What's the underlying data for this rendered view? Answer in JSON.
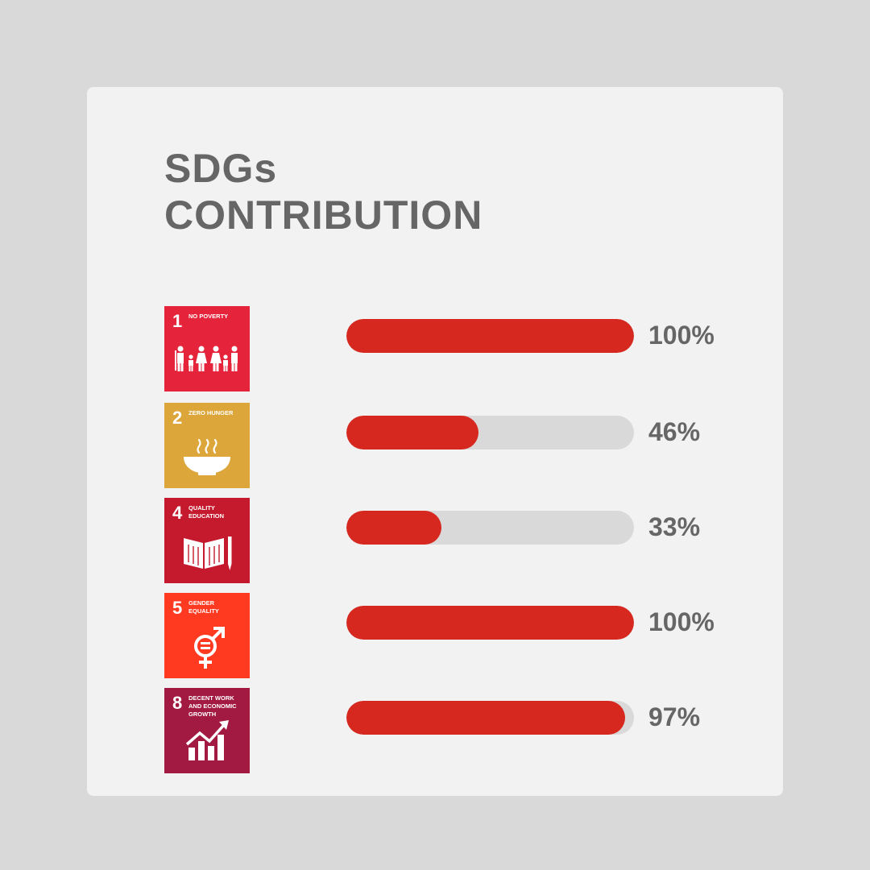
{
  "title": {
    "line1": "SDGs",
    "line2": "CONTRIBUTION"
  },
  "chart_data": {
    "type": "bar",
    "orientation": "horizontal",
    "categories": [
      "NO POVERTY",
      "ZERO HUNGER",
      "QUALITY EDUCATION",
      "GENDER EQUALITY",
      "DECENT WORK AND ECONOMIC GROWTH"
    ],
    "values": [
      100,
      46,
      33,
      100,
      97
    ],
    "value_labels": [
      "100%",
      "46%",
      "33%",
      "100%",
      "97%"
    ],
    "xlim": [
      0,
      100
    ],
    "grid": false,
    "bar_color": "#d6281f",
    "track_color": "#d9d9d9"
  },
  "goals": [
    {
      "number": "1",
      "label": "NO POVERTY",
      "color": "#e5243b",
      "icon": "family-icon"
    },
    {
      "number": "2",
      "label": "ZERO HUNGER",
      "color": "#dda63a",
      "icon": "bowl-icon"
    },
    {
      "number": "4",
      "label": "QUALITY EDUCATION",
      "color": "#c5192d",
      "icon": "book-pencil-icon"
    },
    {
      "number": "5",
      "label": "GENDER EQUALITY",
      "color": "#ff3a21",
      "icon": "gender-equality-icon"
    },
    {
      "number": "8",
      "label": "DECENT WORK AND ECONOMIC GROWTH",
      "color": "#a21942",
      "icon": "growth-chart-icon"
    }
  ]
}
